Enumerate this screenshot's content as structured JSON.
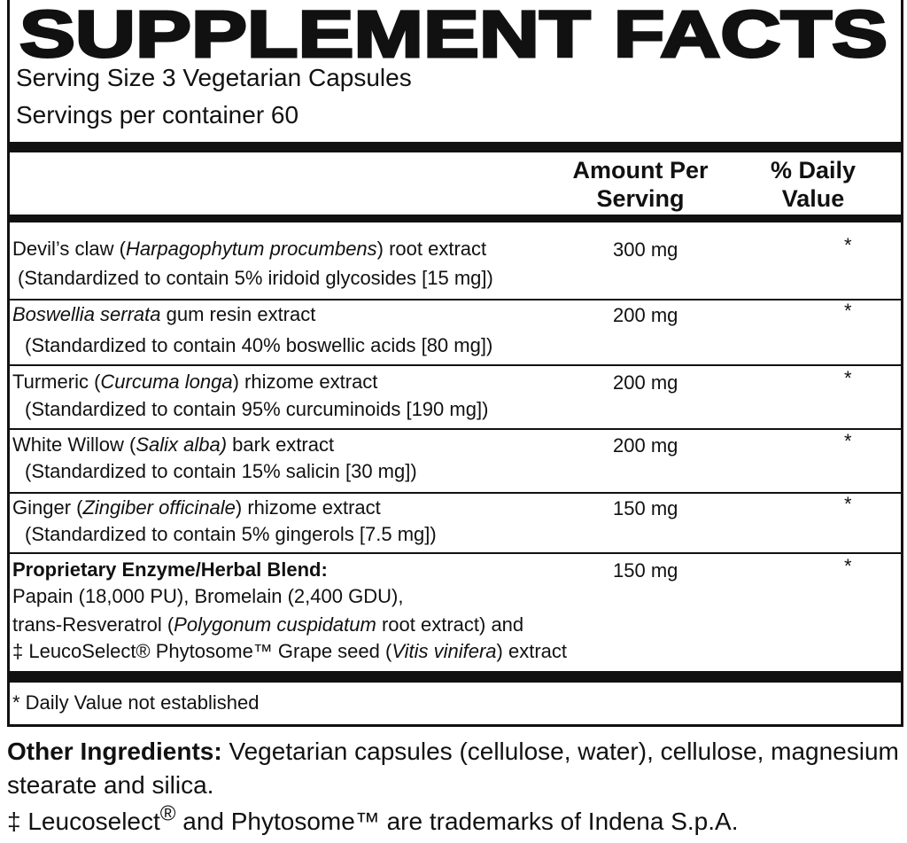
{
  "title": "SUPPLEMENT FACTS",
  "serving_size": "Serving Size 3 Vegetarian Capsules",
  "servings_per_container": "Servings per container 60",
  "header": {
    "amount": "Amount Per Serving",
    "daily_value": "% Daily Value"
  },
  "rows": [
    {
      "name": [
        "Devil’s claw (",
        "Harpagophytum procumbens",
        ") root extract"
      ],
      "detail": "(Standardized to contain 5% iridoid glycosides [15 mg])",
      "amount": "300 mg",
      "daily_value": "*"
    },
    {
      "name": [
        "Boswellia serrata",
        " gum resin extract"
      ],
      "detail": "(Standardized to contain 40% boswellic acids [80 mg])",
      "amount": "200 mg",
      "daily_value": "*"
    },
    {
      "name": [
        "Turmeric (",
        "Curcuma longa",
        ") rhizome extract"
      ],
      "detail": "(Standardized to contain 95% curcuminoids [190 mg])",
      "amount": "200 mg",
      "daily_value": "*"
    },
    {
      "name": [
        "White Willow (",
        "Salix alba)",
        " bark extract"
      ],
      "detail": "(Standardized to contain 15% salicin [30 mg])",
      "amount": "200 mg",
      "daily_value": "*"
    },
    {
      "name": [
        "Ginger (",
        "Zingiber officinale",
        ") rhizome extract"
      ],
      "detail": "(Standardized to contain 5% gingerols [7.5 mg])",
      "amount": "150 mg",
      "daily_value": "*"
    }
  ],
  "blend": {
    "name": "Proprietary Enzyme/Herbal Blend:",
    "line1": "Papain (18,000 PU), Bromelain (2,400 GDU),",
    "line2": [
      "trans-Resveratrol (",
      "Polygonum cuspidatum",
      " root extract) and"
    ],
    "line3": [
      "‡ LeucoSelect® Phytosome™ Grape seed (",
      "Vitis vinifera",
      ") extract"
    ],
    "amount": "150 mg",
    "daily_value": "*"
  },
  "footnote": "* Daily Value not established",
  "other_ingredients": {
    "label": "Other Ingredients:",
    "text": " Vegetarian capsules (cellulose, water), cellulose, magnesium stearate and silica."
  },
  "trademark": [
    "‡ Leucoselect",
    "®",
    " and Phytosome™ are trademarks of Indena S.p.A."
  ]
}
